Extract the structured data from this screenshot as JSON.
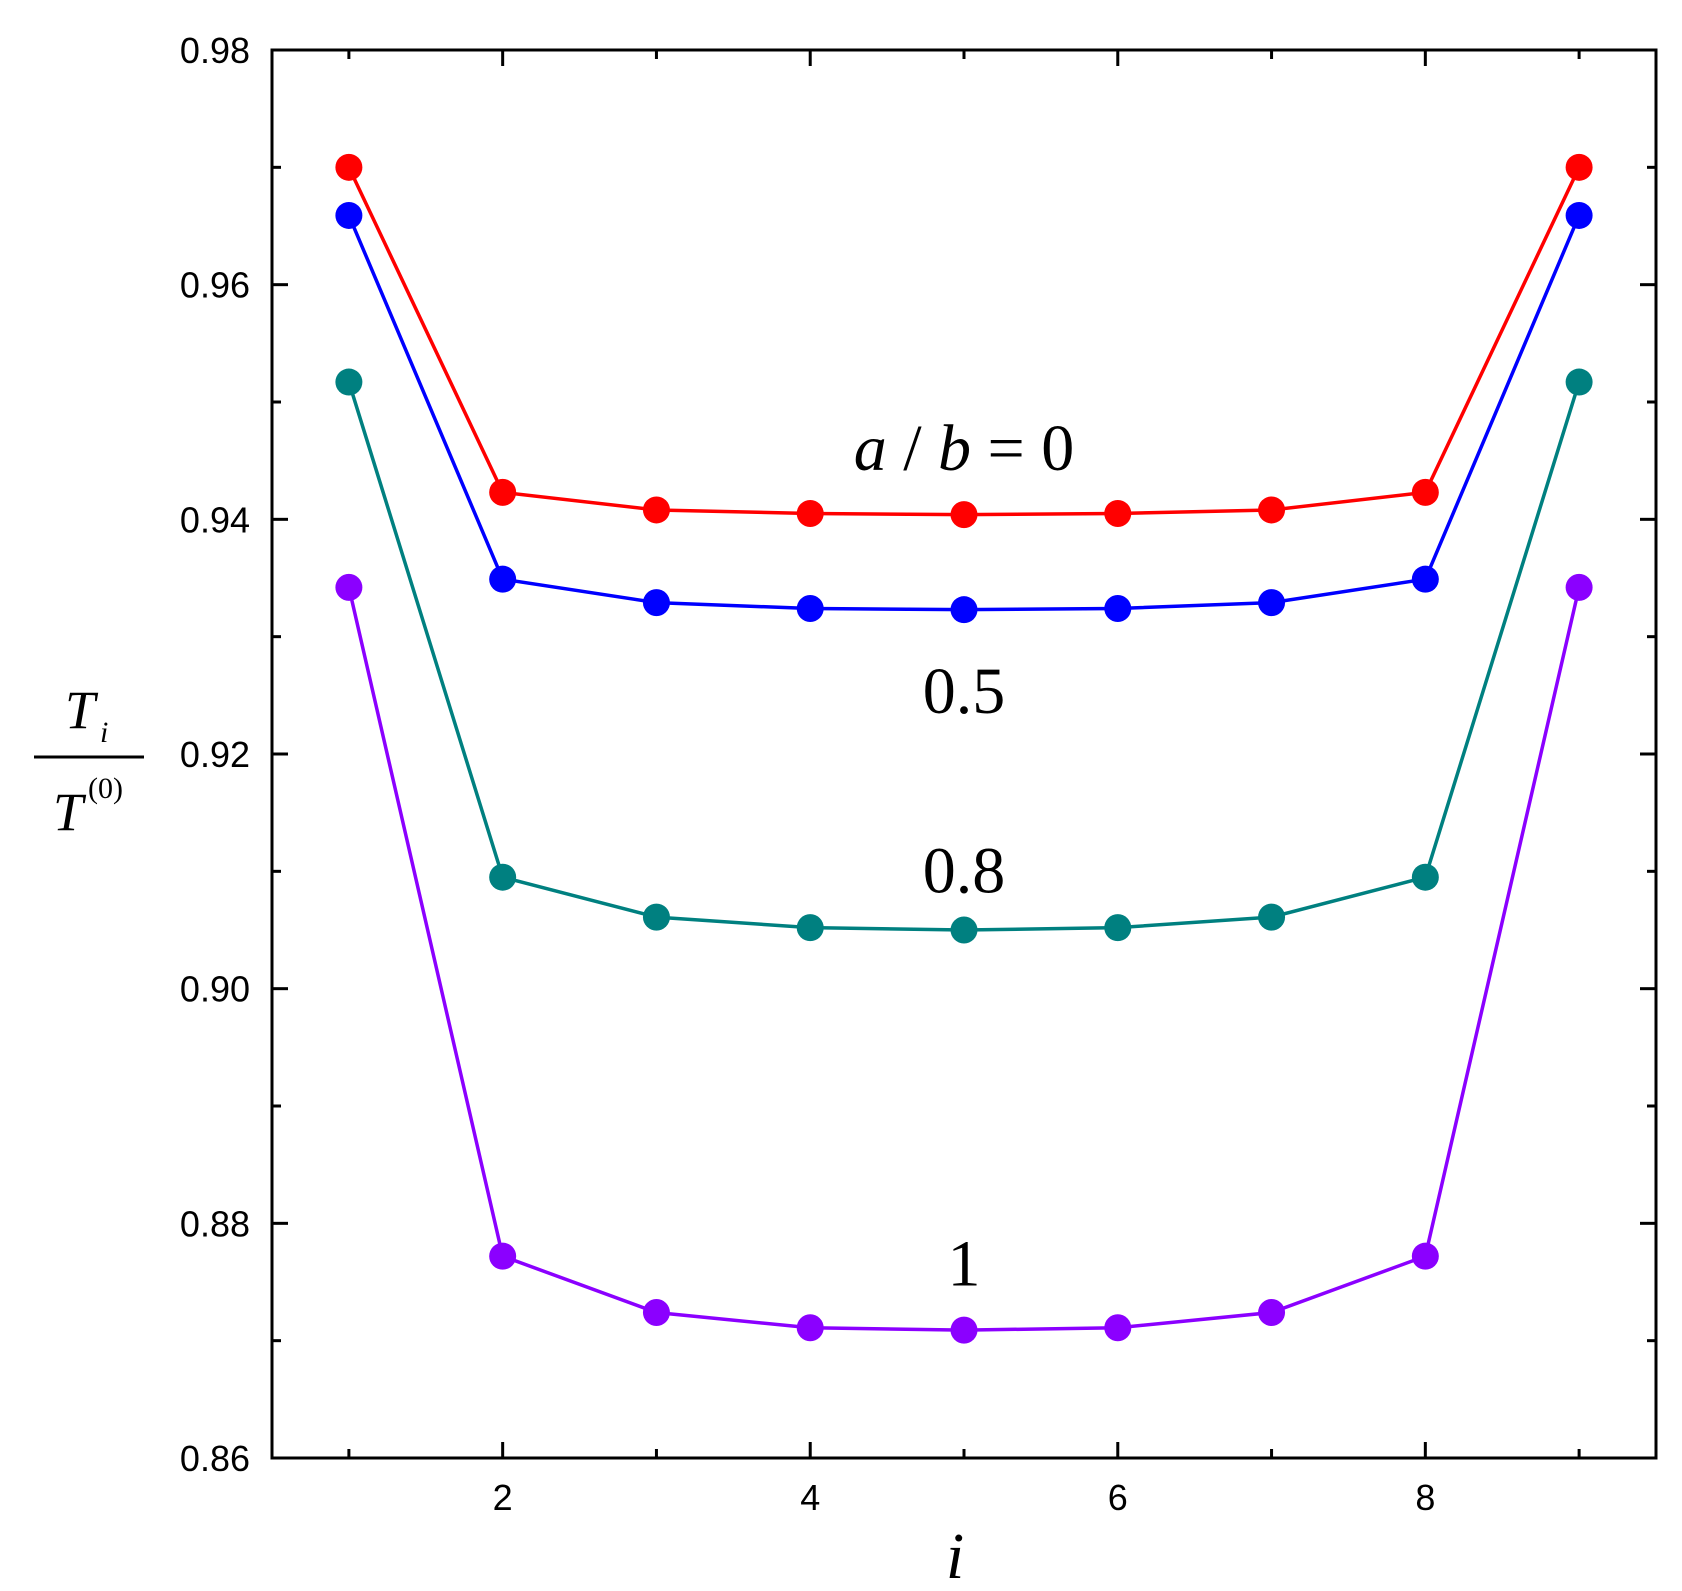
{
  "chart_data": {
    "type": "line",
    "title": "",
    "xlabel": "i",
    "ylabel": {
      "numerator": "T",
      "numerator_sub": "i",
      "denominator": "T",
      "denominator_sup": "(0)"
    },
    "xlim": [
      0.5,
      9.5
    ],
    "ylim": [
      0.86,
      0.98
    ],
    "x": [
      1,
      2,
      3,
      4,
      5,
      6,
      7,
      8,
      9
    ],
    "xticks": [
      2,
      4,
      6,
      8
    ],
    "xtick_labels": [
      "2",
      "4",
      "6",
      "8"
    ],
    "xticks_minor": [
      1,
      3,
      5,
      7,
      9
    ],
    "yticks": [
      0.86,
      0.88,
      0.9,
      0.92,
      0.94,
      0.96,
      0.98
    ],
    "ytick_labels": [
      "0.86",
      "0.88",
      "0.90",
      "0.92",
      "0.94",
      "0.96",
      "0.98"
    ],
    "yticks_minor": [
      0.87,
      0.89,
      0.91,
      0.93,
      0.95,
      0.97
    ],
    "grid": false,
    "legend": "none",
    "series": [
      {
        "color": "#ff0000",
        "values": [
          0.97,
          0.9423,
          0.9408,
          0.9405,
          0.9404,
          0.9405,
          0.9408,
          0.9423,
          0.97
        ]
      },
      {
        "color": "#0000ff",
        "values": [
          0.9659,
          0.9349,
          0.9329,
          0.9324,
          0.9323,
          0.9324,
          0.9329,
          0.9349,
          0.9659
        ]
      },
      {
        "color": "#008080",
        "values": [
          0.9517,
          0.9095,
          0.9061,
          0.9052,
          0.905,
          0.9052,
          0.9061,
          0.9095,
          0.9517
        ]
      },
      {
        "color": "#8b00ff",
        "values": [
          0.9342,
          0.8772,
          0.8724,
          0.8711,
          0.8709,
          0.8711,
          0.8724,
          0.8772,
          0.9342
        ]
      }
    ],
    "annotations": [
      {
        "text": "a / b = 0",
        "x": 5.0,
        "y": 0.9442,
        "series_index": 0,
        "italic_letters": true
      },
      {
        "text": "0.5",
        "x": 5.0,
        "y": 0.9235,
        "series_index": 1
      },
      {
        "text": "0.8",
        "x": 5.0,
        "y": 0.9082,
        "series_index": 2
      },
      {
        "text": "1",
        "x": 5.0,
        "y": 0.8747,
        "series_index": 3
      }
    ]
  }
}
